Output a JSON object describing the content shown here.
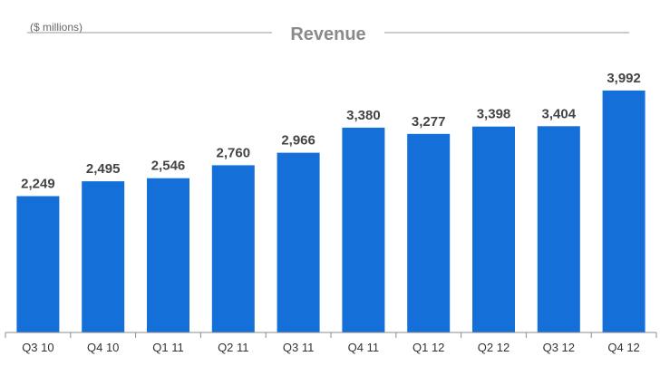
{
  "chart_data": {
    "type": "bar",
    "title": "Revenue",
    "unit_label": "($ millions)",
    "categories": [
      "Q3 10",
      "Q4 10",
      "Q1 11",
      "Q2 11",
      "Q3 11",
      "Q4 11",
      "Q1 12",
      "Q2 12",
      "Q3 12",
      "Q4 12"
    ],
    "values": [
      2249,
      2495,
      2546,
      2760,
      2966,
      3380,
      3277,
      3398,
      3404,
      3992
    ],
    "value_labels": [
      "2,249",
      "2,495",
      "2,546",
      "2,760",
      "2,966",
      "3,380",
      "3,277",
      "3,398",
      "3,404",
      "3,992"
    ],
    "xlabel": "",
    "ylabel": "",
    "ylim": [
      0,
      4400
    ],
    "grid": false,
    "legend": "none",
    "bar_color": "#1470D8",
    "axis_color": "#8c8c8c"
  }
}
